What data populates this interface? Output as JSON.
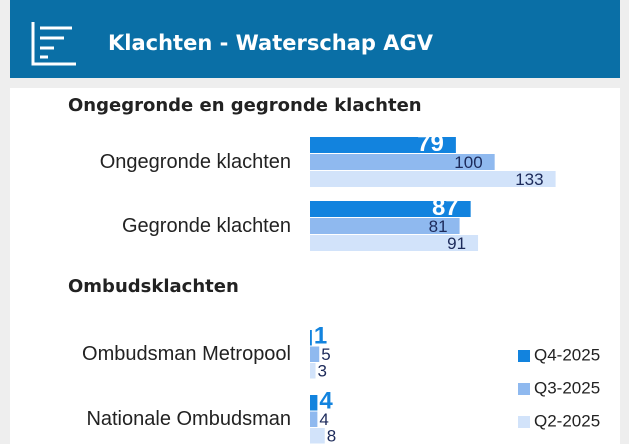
{
  "header": {
    "title": "Klachten - Waterschap AGV"
  },
  "chart_data": [
    {
      "type": "bar",
      "orientation": "horizontal",
      "title": "Ongegronde en gegronde klachten",
      "categories": [
        "Ongegronde klachten",
        "Gegronde klachten"
      ],
      "xlim": [
        0,
        150
      ],
      "series": [
        {
          "name": "Q4-2025",
          "color": "#1283de",
          "values": [
            79,
            87
          ]
        },
        {
          "name": "Q3-2025",
          "color": "#8fb9ef",
          "values": [
            100,
            81
          ]
        },
        {
          "name": "Q2-2025",
          "color": "#d2e3fa",
          "values": [
            133,
            91
          ]
        }
      ]
    },
    {
      "type": "bar",
      "orientation": "horizontal",
      "title": "Ombudsklachten",
      "categories": [
        "Ombudsman Metropool",
        "Nationale Ombudsman"
      ],
      "xlim": [
        0,
        150
      ],
      "legend": "right",
      "series": [
        {
          "name": "Q4-2025",
          "color": "#1283de",
          "values": [
            1,
            4
          ]
        },
        {
          "name": "Q3-2025",
          "color": "#8fb9ef",
          "values": [
            5,
            4
          ]
        },
        {
          "name": "Q2-2025",
          "color": "#d2e3fa",
          "values": [
            3,
            8
          ]
        }
      ]
    }
  ]
}
